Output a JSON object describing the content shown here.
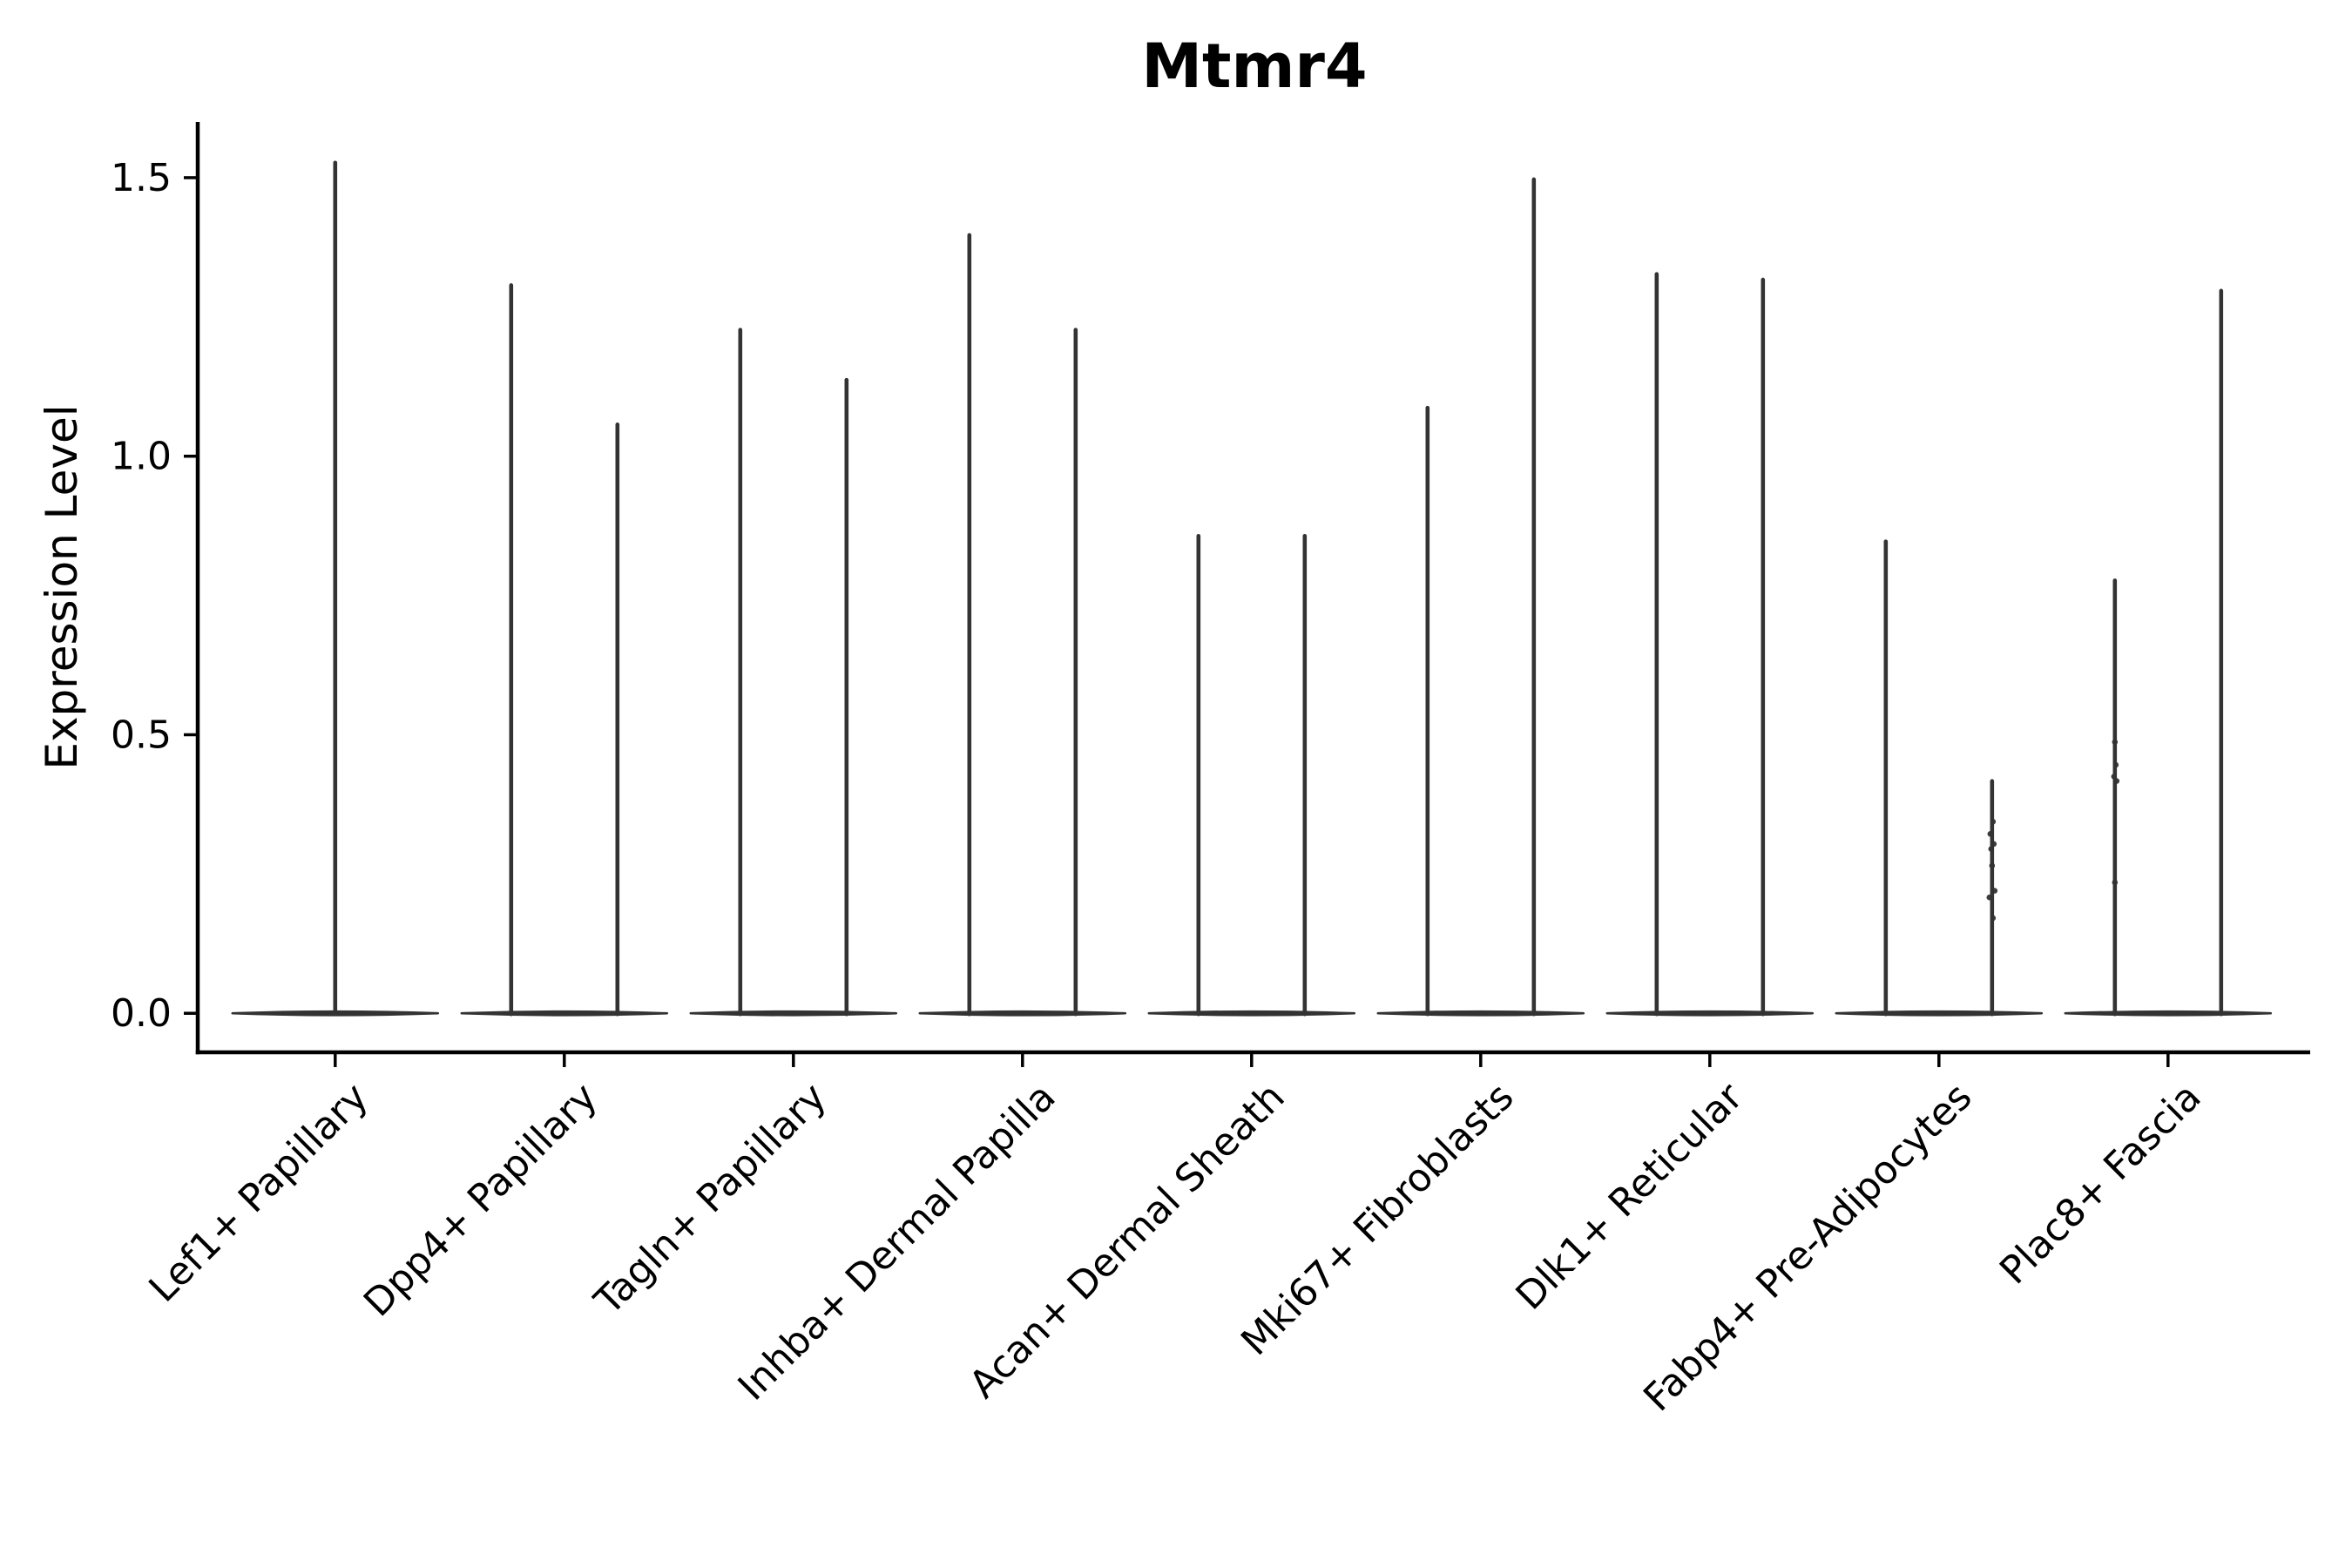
{
  "chart_data": {
    "type": "violin",
    "title": "Mtmr4",
    "xlabel": "",
    "ylabel": "Expression Level",
    "ylim": [
      -0.07,
      1.6
    ],
    "yticks": [
      0.0,
      0.5,
      1.0,
      1.5
    ],
    "ytick_labels": [
      "0.0",
      "0.5",
      "1.0",
      "1.5"
    ],
    "grid": false,
    "legend": null,
    "x_tick_rotation_deg": 45,
    "categories": [
      "Lef1+ Papillary",
      "Dpp4+ Papillary",
      "Tagln+ Papillary",
      "Inhba+ Dermal Papilla",
      "Acan+ Dermal Sheath",
      "Mki67+ Fibroblasts",
      "Dlk1+ Reticular",
      "Fabp4+ Pre-Adipocytes",
      "Plac8+ Fascia"
    ],
    "violins": [
      {
        "category_index": 0,
        "group": "center",
        "min": 0,
        "max_value": 1.53
      },
      {
        "category_index": 1,
        "group": "left",
        "min": 0,
        "max_value": 1.31
      },
      {
        "category_index": 1,
        "group": "right",
        "min": 0,
        "max_value": 1.06
      },
      {
        "category_index": 2,
        "group": "left",
        "min": 0,
        "max_value": 1.23
      },
      {
        "category_index": 2,
        "group": "right",
        "min": 0,
        "max_value": 1.14
      },
      {
        "category_index": 3,
        "group": "left",
        "min": 0,
        "max_value": 1.4
      },
      {
        "category_index": 3,
        "group": "right",
        "min": 0,
        "max_value": 1.23
      },
      {
        "category_index": 4,
        "group": "left",
        "min": 0,
        "max_value": 0.86
      },
      {
        "category_index": 4,
        "group": "right",
        "min": 0,
        "max_value": 0.86
      },
      {
        "category_index": 5,
        "group": "left",
        "min": 0,
        "max_value": 1.09
      },
      {
        "category_index": 5,
        "group": "right",
        "min": 0,
        "max_value": 1.5
      },
      {
        "category_index": 6,
        "group": "left",
        "min": 0,
        "max_value": 1.33
      },
      {
        "category_index": 6,
        "group": "right",
        "min": 0,
        "max_value": 1.32
      },
      {
        "category_index": 7,
        "group": "left",
        "min": 0,
        "max_value": 0.85
      },
      {
        "category_index": 7,
        "group": "right",
        "min": 0,
        "max_value": 0.42
      },
      {
        "category_index": 8,
        "group": "left",
        "min": 0,
        "max_value": 0.78
      },
      {
        "category_index": 8,
        "group": "right",
        "min": 0,
        "max_value": 1.3
      }
    ],
    "jitter_points": [
      {
        "category_index": 7,
        "group": "right",
        "values": [
          0.344,
          0.322,
          0.304,
          0.295,
          0.265,
          0.22,
          0.208,
          0.171
        ],
        "x_jitter": [
          1,
          -2,
          2,
          -1,
          0,
          3,
          -3,
          1
        ]
      },
      {
        "category_index": 8,
        "group": "left",
        "values": [
          0.487,
          0.446,
          0.425,
          0.417,
          0.235
        ],
        "x_jitter": [
          0,
          1,
          -1,
          2,
          0
        ]
      }
    ],
    "colors": {
      "violin": "#333333",
      "axes": "#000000",
      "text": "#000000",
      "background": "#ffffff"
    }
  }
}
